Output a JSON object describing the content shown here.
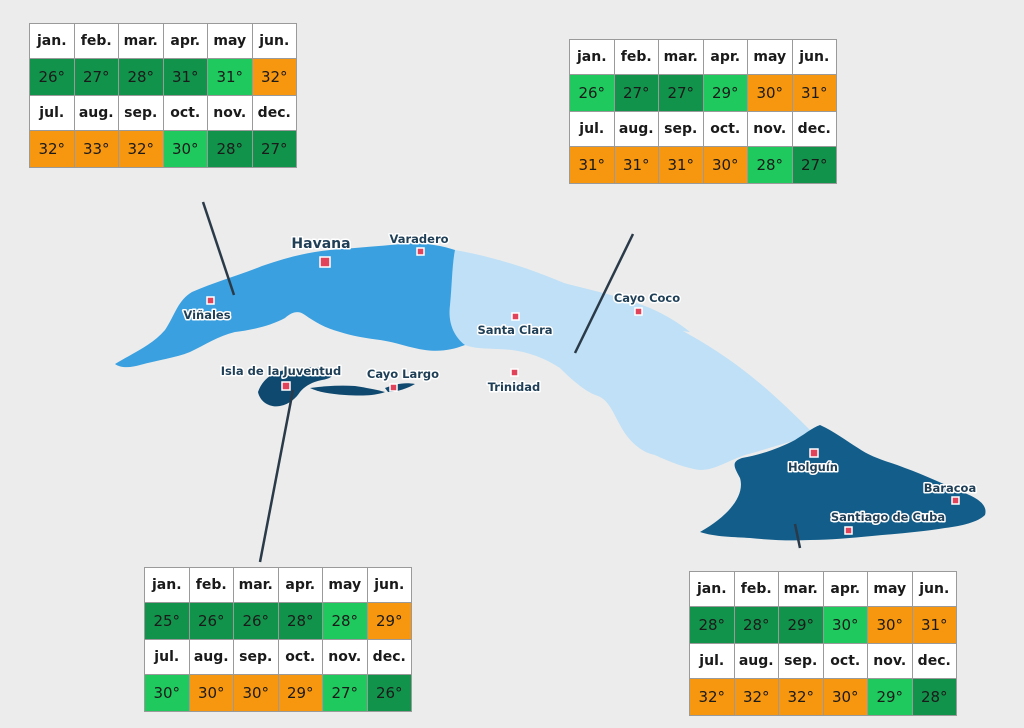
{
  "colors": {
    "hot": "#f7960f",
    "warm": "#1fc95e",
    "cool": "#12934b",
    "region_west": "#3aa0e0",
    "region_central": "#bfe0f6",
    "region_east": "#125d8a",
    "region_isla": "#10496f",
    "city_marker": "#e0435a"
  },
  "cities": [
    {
      "id": "havana",
      "name": "Havana",
      "major": true
    },
    {
      "id": "varadero",
      "name": "Varadero"
    },
    {
      "id": "vinales",
      "name": "Viñales"
    },
    {
      "id": "isla",
      "name": "Isla de la Juventud"
    },
    {
      "id": "cayo-largo",
      "name": "Cayo Largo"
    },
    {
      "id": "santa-clara",
      "name": "Santa Clara"
    },
    {
      "id": "trinidad",
      "name": "Trinidad"
    },
    {
      "id": "cayo-coco",
      "name": "Cayo Coco"
    },
    {
      "id": "holguin",
      "name": "Holguín"
    },
    {
      "id": "baracoa",
      "name": "Baracoa"
    },
    {
      "id": "santiago",
      "name": "Santiago de Cuba"
    }
  ],
  "tables": [
    {
      "id": "west",
      "months": [
        "jan.",
        "feb.",
        "mar.",
        "apr.",
        "may",
        "jun.",
        "jul.",
        "aug.",
        "sep.",
        "oct.",
        "nov.",
        "dec."
      ],
      "temps": [
        "26°",
        "27°",
        "28°",
        "31°",
        "31°",
        "32°",
        "32°",
        "33°",
        "32°",
        "30°",
        "28°",
        "27°"
      ],
      "levels": [
        "cool",
        "cool",
        "cool",
        "cool",
        "warm",
        "hot",
        "hot",
        "hot",
        "hot",
        "warm",
        "cool",
        "cool"
      ]
    },
    {
      "id": "central",
      "months": [
        "jan.",
        "feb.",
        "mar.",
        "apr.",
        "may",
        "jun.",
        "jul.",
        "aug.",
        "sep.",
        "oct.",
        "nov.",
        "dec."
      ],
      "temps": [
        "26°",
        "27°",
        "27°",
        "29°",
        "30°",
        "31°",
        "31°",
        "31°",
        "31°",
        "30°",
        "28°",
        "27°"
      ],
      "levels": [
        "warm",
        "cool",
        "cool",
        "warm",
        "hot",
        "hot",
        "hot",
        "hot",
        "hot",
        "hot",
        "warm",
        "cool"
      ]
    },
    {
      "id": "isla",
      "months": [
        "jan.",
        "feb.",
        "mar.",
        "apr.",
        "may",
        "jun.",
        "jul.",
        "aug.",
        "sep.",
        "oct.",
        "nov.",
        "dec."
      ],
      "temps": [
        "25°",
        "26°",
        "26°",
        "28°",
        "28°",
        "29°",
        "30°",
        "30°",
        "30°",
        "29°",
        "27°",
        "26°"
      ],
      "levels": [
        "cool",
        "cool",
        "cool",
        "cool",
        "warm",
        "hot",
        "warm",
        "hot",
        "hot",
        "hot",
        "warm",
        "cool"
      ]
    },
    {
      "id": "east",
      "months": [
        "jan.",
        "feb.",
        "mar.",
        "apr.",
        "may",
        "jun.",
        "jul.",
        "aug.",
        "sep.",
        "oct.",
        "nov.",
        "dec."
      ],
      "temps": [
        "28°",
        "28°",
        "29°",
        "30°",
        "30°",
        "31°",
        "32°",
        "32°",
        "32°",
        "30°",
        "29°",
        "28°"
      ],
      "levels": [
        "cool",
        "cool",
        "cool",
        "warm",
        "hot",
        "hot",
        "hot",
        "hot",
        "hot",
        "hot",
        "warm",
        "cool"
      ]
    }
  ]
}
